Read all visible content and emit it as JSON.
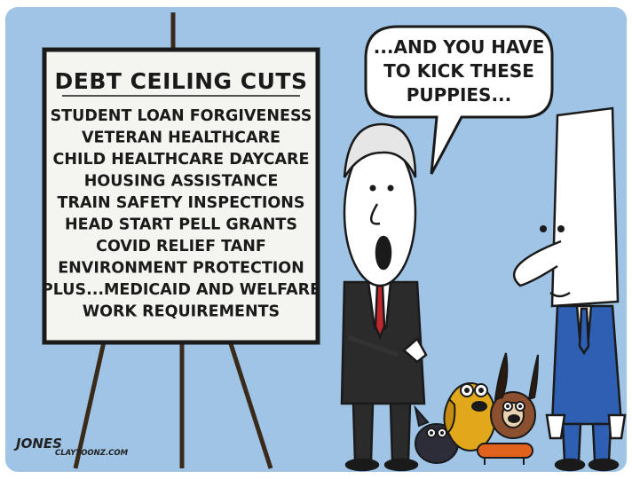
{
  "sign": {
    "title": "DEBT CEILING CUTS",
    "lines": [
      "STUDENT LOAN FORGIVENESS",
      "VETERAN HEALTHCARE",
      "CHILD HEALTHCARE DAYCARE",
      "HOUSING ASSISTANCE",
      "TRAIN SAFETY INSPECTIONS",
      "HEAD START  PELL GRANTS",
      "COVID RELIEF  TANF",
      "ENVIRONMENT PROTECTION",
      "PLUS...MEDICAID AND WELFARE",
      "WORK REQUIREMENTS"
    ]
  },
  "speech_bubble": {
    "lines": [
      "...AND YOU HAVE",
      "TO KICK THESE",
      "PUPPIES..."
    ]
  },
  "signature": {
    "name": "JONES",
    "site": "CLAYTOONZ.COM"
  },
  "colors": {
    "sky": "#9fc4e6",
    "sign_face": "#f4f4f0",
    "ink": "#1a1a1a",
    "suit_dark": "#2b2b2b",
    "suit_blue": "#2e5fb3",
    "tie_red": "#c0272d",
    "dog_yellow": "#e0a81a",
    "dog_brown": "#8a5030",
    "dog_black": "#2d2d3a",
    "dachshund_orange": "#e0621c"
  }
}
